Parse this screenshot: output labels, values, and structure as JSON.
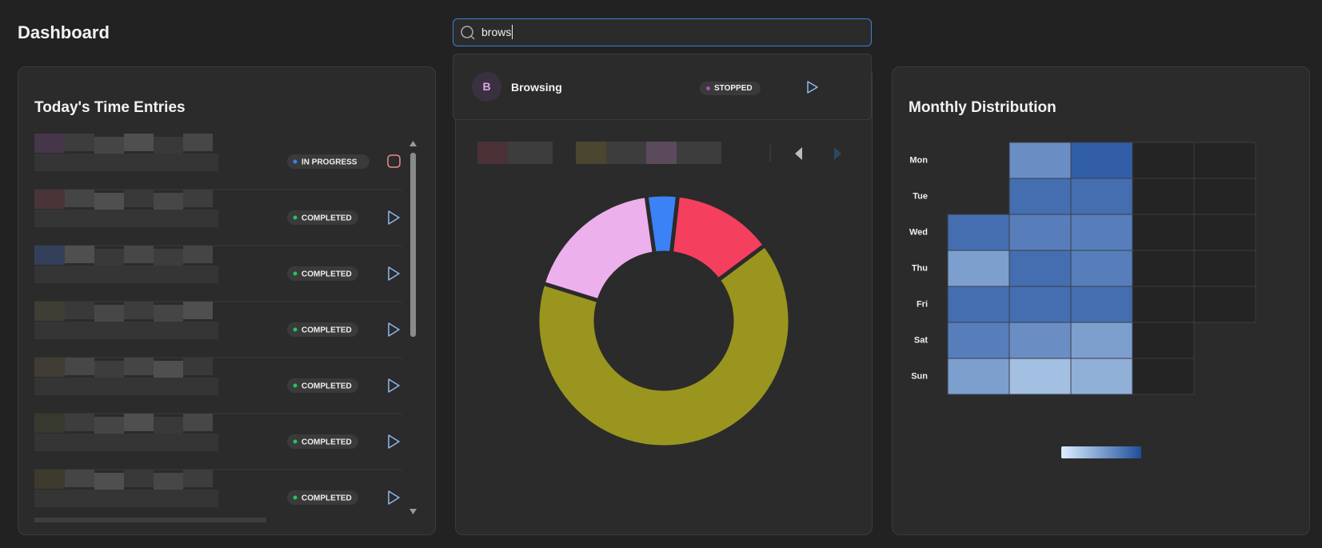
{
  "header": {
    "title": "Dashboard"
  },
  "search": {
    "query": "brows",
    "results": [
      {
        "initial": "B",
        "name": "Browsing",
        "status": "STOPPED",
        "color": "#b04ac0"
      }
    ]
  },
  "time_entries": {
    "title": "Today's Time Entries",
    "entries": [
      {
        "status": "IN PROGRESS",
        "color": "#3b82f6"
      },
      {
        "status": "COMPLETED",
        "color": "#22c55e"
      },
      {
        "status": "COMPLETED",
        "color": "#22c55e"
      },
      {
        "status": "COMPLETED",
        "color": "#22c55e"
      },
      {
        "status": "COMPLETED",
        "color": "#22c55e"
      },
      {
        "status": "COMPLETED",
        "color": "#22c55e"
      },
      {
        "status": "COMPLETED",
        "color": "#22c55e"
      }
    ]
  },
  "category_chart": {
    "type": "pie",
    "values": [
      4,
      13,
      65,
      18
    ],
    "colors": [
      "#3b82f6",
      "#f43f5e",
      "#9a951f",
      "#ecb0ec"
    ]
  },
  "monthly_distribution": {
    "title": "Monthly Distribution",
    "rows": [
      "Mon",
      "Tue",
      "Wed",
      "Thu",
      "Fri",
      "Sat",
      "Sun"
    ],
    "values": [
      [
        null,
        6,
        9,
        0,
        0
      ],
      [
        null,
        8,
        8,
        0,
        0
      ],
      [
        8,
        7,
        7,
        0,
        0
      ],
      [
        5,
        8,
        7,
        0,
        0
      ],
      [
        8,
        8,
        8,
        0,
        0
      ],
      [
        7,
        6,
        5,
        0,
        null
      ],
      [
        5,
        3,
        4,
        0,
        null
      ]
    ],
    "zlim": [
      0,
      10
    ],
    "color_scale": [
      "#dcefff",
      "#1e4e9c"
    ],
    "empty_color": "#242424"
  }
}
